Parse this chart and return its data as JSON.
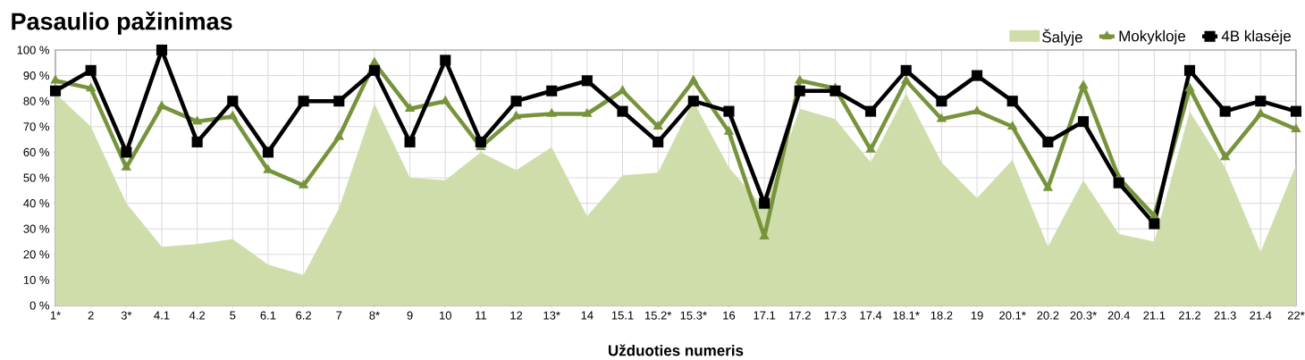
{
  "chart_data": {
    "type": "area",
    "title": "Pasaulio pažinimas",
    "xlabel": "Užduoties numeris",
    "categories": [
      "1*",
      "2",
      "3*",
      "4.1",
      "4.2",
      "5",
      "6.1",
      "6.2",
      "7",
      "8*",
      "9",
      "10",
      "11",
      "12",
      "13*",
      "14",
      "15.1",
      "15.2*",
      "15.3*",
      "16",
      "17.1",
      "17.2",
      "17.3",
      "17.4",
      "18.1*",
      "18.2",
      "19",
      "20.1*",
      "20.2",
      "20.3*",
      "20.4",
      "21.1",
      "21.2",
      "21.3",
      "21.4",
      "22*"
    ],
    "series": [
      {
        "name": "Šalyje",
        "type": "area",
        "color": "#cfddaa",
        "marker": "none",
        "values": [
          83,
          70,
          40,
          23,
          24,
          26,
          16,
          12,
          38,
          79,
          50,
          49,
          60,
          53,
          62,
          35,
          51,
          52,
          80,
          54,
          38,
          77,
          73,
          56,
          83,
          56,
          42,
          57,
          23,
          49,
          28,
          25,
          76,
          54,
          21,
          55
        ]
      },
      {
        "name": "Mokykloje",
        "type": "line",
        "color": "#77933c",
        "marker": "triangle",
        "values": [
          88,
          85,
          54,
          78,
          72,
          74,
          53,
          47,
          66,
          95,
          77,
          80,
          62,
          74,
          75,
          75,
          84,
          70,
          88,
          68,
          27,
          88,
          85,
          61,
          88,
          73,
          76,
          70,
          46,
          86,
          50,
          35,
          85,
          58,
          75,
          69
        ]
      },
      {
        "name": "4B klasėje",
        "type": "line",
        "color": "#000000",
        "marker": "square",
        "values": [
          84,
          92,
          60,
          100,
          64,
          80,
          60,
          80,
          80,
          92,
          64,
          96,
          64,
          80,
          84,
          88,
          76,
          64,
          80,
          76,
          40,
          84,
          84,
          76,
          92,
          80,
          90,
          80,
          64,
          72,
          48,
          32,
          92,
          76,
          80,
          76
        ]
      }
    ],
    "ylim": [
      0,
      100
    ],
    "yticks": [
      {
        "value": 0,
        "label": "0 %"
      },
      {
        "value": 10,
        "label": "10 %"
      },
      {
        "value": 20,
        "label": "20 %"
      },
      {
        "value": 30,
        "label": "30 %"
      },
      {
        "value": 40,
        "label": "40 %"
      },
      {
        "value": 50,
        "label": "50 %"
      },
      {
        "value": 60,
        "label": "60 %"
      },
      {
        "value": 70,
        "label": "70 %"
      },
      {
        "value": 80,
        "label": "80 %"
      },
      {
        "value": 90,
        "label": "90 %"
      },
      {
        "value": 100,
        "label": "100 %"
      }
    ],
    "grid": true,
    "legend": "top right",
    "line_style": "solid"
  }
}
